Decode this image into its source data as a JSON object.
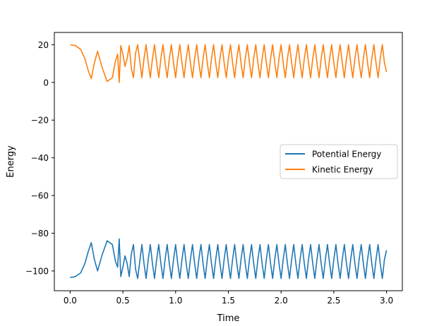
{
  "chart_data": {
    "type": "line",
    "title": "",
    "xlabel": "Time",
    "ylabel": "Energy",
    "xlim": [
      -0.15,
      3.15
    ],
    "ylim": [
      -110.5,
      26.5
    ],
    "xticks": [
      0.0,
      0.5,
      1.0,
      1.5,
      2.0,
      2.5,
      3.0
    ],
    "xtick_labels": [
      "0.0",
      "0.5",
      "1.0",
      "1.5",
      "2.0",
      "2.5",
      "3.0"
    ],
    "yticks": [
      -100,
      -80,
      -60,
      -40,
      -20,
      0,
      20
    ],
    "ytick_labels": [
      "−100",
      "−80",
      "−60",
      "−40",
      "−20",
      "0",
      "20"
    ],
    "legend_position": "center-right",
    "series": [
      {
        "name": "Potential Energy",
        "color": "#1f77b4",
        "x": [
          0.0,
          0.05,
          0.1,
          0.14,
          0.17,
          0.2,
          0.23,
          0.26,
          0.3,
          0.35,
          0.4,
          0.43,
          0.45,
          0.465,
          0.48,
          0.5,
          0.52,
          0.54,
          0.56,
          0.58,
          0.6,
          0.62,
          0.64,
          0.66,
          0.68,
          0.7,
          0.72,
          0.74,
          0.76,
          0.78,
          0.8,
          0.82,
          0.84,
          0.86,
          0.88,
          0.9,
          0.92,
          0.94,
          0.96,
          0.98,
          1.0,
          1.02,
          1.04,
          1.06,
          1.08,
          1.1,
          1.12,
          1.14,
          1.16,
          1.18,
          1.2,
          1.22,
          1.24,
          1.26,
          1.28,
          1.3,
          1.32,
          1.34,
          1.36,
          1.38,
          1.4,
          1.42,
          1.44,
          1.46,
          1.48,
          1.5,
          1.52,
          1.54,
          1.56,
          1.58,
          1.6,
          1.62,
          1.64,
          1.66,
          1.68,
          1.7,
          1.72,
          1.74,
          1.76,
          1.78,
          1.8,
          1.82,
          1.84,
          1.86,
          1.88,
          1.9,
          1.92,
          1.94,
          1.96,
          1.98,
          2.0,
          2.02,
          2.04,
          2.06,
          2.08,
          2.1,
          2.12,
          2.14,
          2.16,
          2.18,
          2.2,
          2.22,
          2.24,
          2.26,
          2.28,
          2.3,
          2.32,
          2.34,
          2.36,
          2.38,
          2.4,
          2.42,
          2.44,
          2.46,
          2.48,
          2.5,
          2.52,
          2.54,
          2.56,
          2.58,
          2.6,
          2.62,
          2.64,
          2.66,
          2.68,
          2.7,
          2.72,
          2.74,
          2.76,
          2.78,
          2.8,
          2.82,
          2.84,
          2.86,
          2.88,
          2.9,
          2.92,
          2.94,
          2.96,
          2.98,
          3.0
        ],
        "y": [
          -103.5,
          -103,
          -101,
          -96,
          -90,
          -85,
          -94,
          -100,
          -92,
          -84,
          -86,
          -95,
          -98,
          -83,
          -103,
          -98,
          -92,
          -96,
          -103,
          -91,
          -86,
          -99,
          -104,
          -95,
          -86,
          -96,
          -104,
          -94,
          -86,
          -96,
          -104,
          -94,
          -86,
          -96,
          -104,
          -94,
          -86,
          -96,
          -104,
          -94,
          -86,
          -96,
          -104,
          -94,
          -86,
          -96,
          -104,
          -94,
          -86,
          -96,
          -104,
          -94,
          -86,
          -96,
          -104,
          -94,
          -86,
          -96,
          -104,
          -94,
          -86,
          -96,
          -104,
          -94,
          -86,
          -96,
          -104,
          -94,
          -86,
          -96,
          -104,
          -94,
          -86,
          -96,
          -104,
          -94,
          -86,
          -96,
          -104,
          -94,
          -86,
          -96,
          -104,
          -94,
          -86,
          -96,
          -104,
          -94,
          -86,
          -96,
          -104,
          -94,
          -86,
          -96,
          -104,
          -94,
          -86,
          -96,
          -104,
          -94,
          -86,
          -96,
          -104,
          -94,
          -86,
          -96,
          -104,
          -94,
          -86,
          -96,
          -104,
          -94,
          -86,
          -96,
          -104,
          -94,
          -86,
          -96,
          -104,
          -94,
          -86,
          -96,
          -104,
          -94,
          -86,
          -96,
          -104,
          -94,
          -86,
          -96,
          -104,
          -94,
          -86,
          -96,
          -104,
          -94,
          -86,
          -96,
          -104,
          -94,
          -89
        ]
      },
      {
        "name": "Kinetic Energy",
        "color": "#ff7f0e",
        "x": [
          0.0,
          0.05,
          0.1,
          0.14,
          0.17,
          0.2,
          0.23,
          0.26,
          0.3,
          0.35,
          0.4,
          0.43,
          0.45,
          0.465,
          0.48,
          0.5,
          0.52,
          0.54,
          0.56,
          0.58,
          0.6,
          0.62,
          0.64,
          0.66,
          0.68,
          0.7,
          0.72,
          0.74,
          0.76,
          0.78,
          0.8,
          0.82,
          0.84,
          0.86,
          0.88,
          0.9,
          0.92,
          0.94,
          0.96,
          0.98,
          1.0,
          1.02,
          1.04,
          1.06,
          1.08,
          1.1,
          1.12,
          1.14,
          1.16,
          1.18,
          1.2,
          1.22,
          1.24,
          1.26,
          1.28,
          1.3,
          1.32,
          1.34,
          1.36,
          1.38,
          1.4,
          1.42,
          1.44,
          1.46,
          1.48,
          1.5,
          1.52,
          1.54,
          1.56,
          1.58,
          1.6,
          1.62,
          1.64,
          1.66,
          1.68,
          1.7,
          1.72,
          1.74,
          1.76,
          1.78,
          1.8,
          1.82,
          1.84,
          1.86,
          1.88,
          1.9,
          1.92,
          1.94,
          1.96,
          1.98,
          2.0,
          2.02,
          2.04,
          2.06,
          2.08,
          2.1,
          2.12,
          2.14,
          2.16,
          2.18,
          2.2,
          2.22,
          2.24,
          2.26,
          2.28,
          2.3,
          2.32,
          2.34,
          2.36,
          2.38,
          2.4,
          2.42,
          2.44,
          2.46,
          2.48,
          2.5,
          2.52,
          2.54,
          2.56,
          2.58,
          2.6,
          2.62,
          2.64,
          2.66,
          2.68,
          2.7,
          2.72,
          2.74,
          2.76,
          2.78,
          2.8,
          2.82,
          2.84,
          2.86,
          2.88,
          2.9,
          2.92,
          2.94,
          2.96,
          2.98,
          3.0
        ],
        "y": [
          20,
          19.5,
          17.5,
          12.5,
          6.5,
          2,
          10.5,
          16.5,
          8.5,
          0.5,
          2.5,
          11.5,
          15,
          0,
          19.5,
          15,
          8.5,
          12.5,
          19.5,
          7.5,
          2.5,
          15.5,
          20,
          11.5,
          2.5,
          12.5,
          20,
          10.5,
          2.5,
          12.5,
          20,
          10.5,
          2.5,
          12.5,
          20,
          10.5,
          2.5,
          12.5,
          20,
          10.5,
          2.5,
          12.5,
          20,
          10.5,
          2.5,
          12.5,
          20,
          10.5,
          2.5,
          12.5,
          20,
          10.5,
          2.5,
          12.5,
          20,
          10.5,
          2.5,
          12.5,
          20,
          10.5,
          2.5,
          12.5,
          20,
          10.5,
          2.5,
          12.5,
          20,
          10.5,
          2.5,
          12.5,
          20,
          10.5,
          2.5,
          12.5,
          20,
          10.5,
          2.5,
          12.5,
          20,
          10.5,
          2.5,
          12.5,
          20,
          10.5,
          2.5,
          12.5,
          20,
          10.5,
          2.5,
          12.5,
          20,
          10.5,
          2.5,
          12.5,
          20,
          10.5,
          2.5,
          12.5,
          20,
          10.5,
          2.5,
          12.5,
          20,
          10.5,
          2.5,
          12.5,
          20,
          10.5,
          2.5,
          12.5,
          20,
          10.5,
          2.5,
          12.5,
          20,
          10.5,
          2.5,
          12.5,
          20,
          10.5,
          2.5,
          12.5,
          20,
          10.5,
          2.5,
          12.5,
          20,
          10.5,
          2.5,
          12.5,
          20,
          10.5,
          2.5,
          12.5,
          20,
          10.5,
          2.5,
          12.5,
          20,
          10.5,
          5.5
        ]
      }
    ]
  }
}
